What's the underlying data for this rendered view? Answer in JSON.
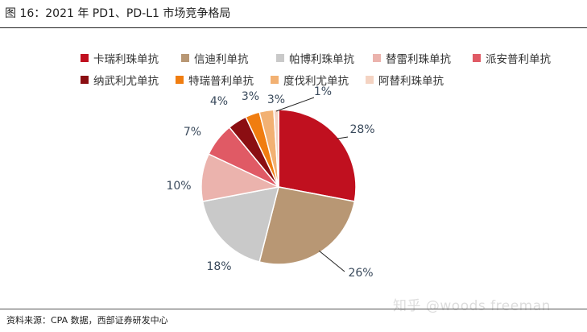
{
  "figure": {
    "title": "图 16：2021 年 PD1、PD-L1 市场竞争格局",
    "source": "资料来源：CPA 数据，西部证券研发中心",
    "watermark": "知乎 @woods freeman"
  },
  "chart_data": {
    "type": "pie",
    "title": "",
    "start_angle_deg": 0,
    "direction": "clockwise",
    "legend_position": "top",
    "slices": [
      {
        "name": "卡瑞利珠单抗",
        "value": 28,
        "label": "28%",
        "color": "#c0101f"
      },
      {
        "name": "信迪利单抗",
        "value": 26,
        "label": "26%",
        "color": "#b89774"
      },
      {
        "name": "帕博利珠单抗",
        "value": 18,
        "label": "18%",
        "color": "#c9c9c9"
      },
      {
        "name": "替雷利珠单抗",
        "value": 10,
        "label": "10%",
        "color": "#ebb3ad"
      },
      {
        "name": "派安普利单抗",
        "value": 7,
        "label": "7%",
        "color": "#e05a65"
      },
      {
        "name": "纳武利尤单抗",
        "value": 4,
        "label": "4%",
        "color": "#8b0e12"
      },
      {
        "name": "特瑞普利单抗",
        "value": 3,
        "label": "3%",
        "color": "#f07d10"
      },
      {
        "name": "度伐利尤单抗",
        "value": 3,
        "label": "3%",
        "color": "#f2b173"
      },
      {
        "name": "阿替利珠单抗",
        "value": 1,
        "label": "1%",
        "color": "#f4d3c2"
      }
    ]
  }
}
